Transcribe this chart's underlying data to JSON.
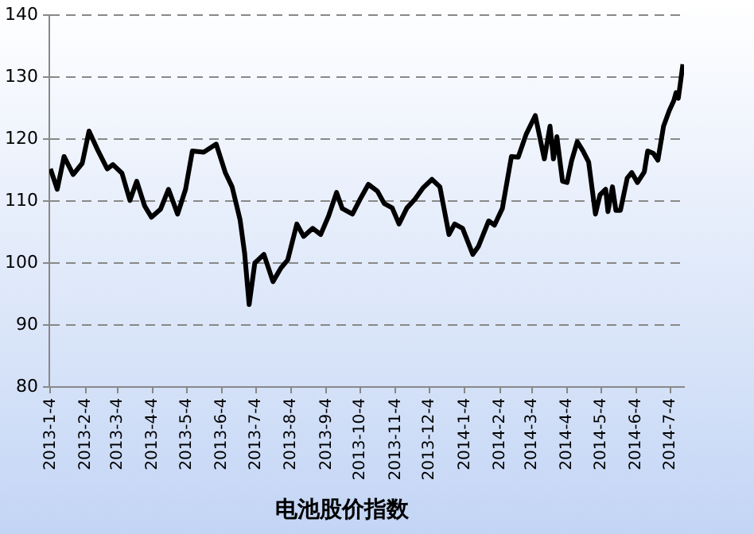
{
  "chart_data": {
    "type": "line",
    "title": "电池股价指数",
    "x": [
      "2013-01-04",
      "2013-01-10",
      "2013-01-16",
      "2013-01-24",
      "2013-02-01",
      "2013-02-07",
      "2013-02-15",
      "2013-02-23",
      "2013-02-28",
      "2013-03-08",
      "2013-03-15",
      "2013-03-21",
      "2013-03-28",
      "2013-04-03",
      "2013-04-11",
      "2013-04-18",
      "2013-04-26",
      "2013-05-03",
      "2013-05-09",
      "2013-05-19",
      "2013-05-30",
      "2013-06-07",
      "2013-06-13",
      "2013-06-20",
      "2013-06-24",
      "2013-06-28",
      "2013-07-03",
      "2013-07-11",
      "2013-07-19",
      "2013-07-26",
      "2013-08-01",
      "2013-08-09",
      "2013-08-15",
      "2013-08-23",
      "2013-08-30",
      "2013-09-06",
      "2013-09-13",
      "2013-09-18",
      "2013-09-27",
      "2013-10-04",
      "2013-10-11",
      "2013-10-19",
      "2013-10-25",
      "2013-11-01",
      "2013-11-07",
      "2013-11-14",
      "2013-11-21",
      "2013-11-28",
      "2013-12-06",
      "2013-12-13",
      "2013-12-21",
      "2013-12-26",
      "2014-01-02",
      "2014-01-11",
      "2014-01-16",
      "2014-01-25",
      "2014-01-30",
      "2014-02-06",
      "2014-02-14",
      "2014-02-20",
      "2014-02-27",
      "2014-03-07",
      "2014-03-15",
      "2014-03-20",
      "2014-03-23",
      "2014-03-26",
      "2014-03-31",
      "2014-04-04",
      "2014-04-08",
      "2014-04-13",
      "2014-04-18",
      "2014-04-23",
      "2014-04-29",
      "2014-05-03",
      "2014-05-08",
      "2014-05-10",
      "2014-05-14",
      "2014-05-17",
      "2014-05-21",
      "2014-05-27",
      "2014-05-31",
      "2014-06-05",
      "2014-06-11",
      "2014-06-14",
      "2014-06-19",
      "2014-06-23",
      "2014-06-28",
      "2014-07-03",
      "2014-07-07",
      "2014-07-09",
      "2014-07-11",
      "2014-07-13",
      "2014-07-15"
    ],
    "series": [
      {
        "color": "#000000",
        "values": [
          115.2,
          111.9,
          117.2,
          114.3,
          116.1,
          121.3,
          118.1,
          115.2,
          115.9,
          114.5,
          110.1,
          113.2,
          109.2,
          107.4,
          108.7,
          111.9,
          107.9,
          111.9,
          118.1,
          117.9,
          119.2,
          114.6,
          112.3,
          107.0,
          101.6,
          93.3,
          100.0,
          101.4,
          97.0,
          99.2,
          100.5,
          106.3,
          104.3,
          105.6,
          104.6,
          107.6,
          111.4,
          108.8,
          107.9,
          110.4,
          112.7,
          111.6,
          109.6,
          108.9,
          106.3,
          108.9,
          110.3,
          112.1,
          113.5,
          112.3,
          104.6,
          106.3,
          105.6,
          101.4,
          102.7,
          106.8,
          106.1,
          108.8,
          117.2,
          117.1,
          120.8,
          123.8,
          116.8,
          122.1,
          116.8,
          120.4,
          113.2,
          113.0,
          116.5,
          119.6,
          118.1,
          116.3,
          107.9,
          111.0,
          111.9,
          108.3,
          112.3,
          108.5,
          108.5,
          113.7,
          114.6,
          113.0,
          114.7,
          118.1,
          117.7,
          116.6,
          122.1,
          124.6,
          126.2,
          127.5,
          126.6,
          129.3,
          132.1
        ]
      }
    ],
    "xlim": [
      "2013-01-03",
      "2014-07-16"
    ],
    "xticks": [
      {
        "value": "2013-01-04",
        "label": "2013-1-4"
      },
      {
        "value": "2013-02-04",
        "label": "2013-2-4"
      },
      {
        "value": "2013-03-04",
        "label": "2013-3-4"
      },
      {
        "value": "2013-04-04",
        "label": "2013-4-4"
      },
      {
        "value": "2013-05-04",
        "label": "2013-5-4"
      },
      {
        "value": "2013-06-04",
        "label": "2013-6-4"
      },
      {
        "value": "2013-07-04",
        "label": "2013-7-4"
      },
      {
        "value": "2013-08-04",
        "label": "2013-8-4"
      },
      {
        "value": "2013-09-04",
        "label": "2013-9-4"
      },
      {
        "value": "2013-10-04",
        "label": "2013-10-4"
      },
      {
        "value": "2013-11-04",
        "label": "2013-11-4"
      },
      {
        "value": "2013-12-04",
        "label": "2013-12-4"
      },
      {
        "value": "2014-01-04",
        "label": "2014-1-4"
      },
      {
        "value": "2014-02-04",
        "label": "2014-2-4"
      },
      {
        "value": "2014-03-04",
        "label": "2014-3-4"
      },
      {
        "value": "2014-04-04",
        "label": "2014-4-4"
      },
      {
        "value": "2014-05-04",
        "label": "2014-5-4"
      },
      {
        "value": "2014-06-04",
        "label": "2014-6-4"
      },
      {
        "value": "2014-07-04",
        "label": "2014-7-4"
      }
    ],
    "ylim": [
      80,
      140
    ],
    "yticks": [
      80,
      90,
      100,
      110,
      120,
      130,
      140
    ],
    "grid": "y",
    "legend": false,
    "marker": "none",
    "line_style": "solid"
  }
}
